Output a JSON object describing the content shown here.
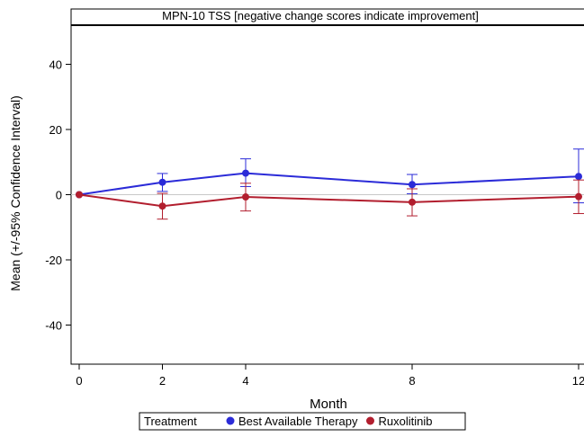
{
  "chart_data": {
    "type": "line",
    "title": "MPN-10 TSS [negative change scores indicate improvement]",
    "xlabel": "Month",
    "ylabel": "Mean (+/-95% Confidence Interval)",
    "x": [
      0,
      2,
      4,
      8,
      12
    ],
    "xticks": [
      "0",
      "2",
      "4",
      "8",
      "12"
    ],
    "yticks": [
      "-40",
      "-20",
      "0",
      "20",
      "40"
    ],
    "xlim": [
      0,
      12
    ],
    "ylim": [
      -52,
      52
    ],
    "reference_line_y": 0,
    "grid": false,
    "legend_title": "Treatment",
    "legend_position": "bottom",
    "series": [
      {
        "name": "Best Available Therapy",
        "color": "#2b2bd8",
        "marker": "circle",
        "values": [
          0,
          3.8,
          6.6,
          3.1,
          5.6
        ],
        "ci_lower": [
          0,
          1.0,
          2.5,
          0.3,
          -2.5
        ],
        "ci_upper": [
          0,
          6.5,
          11.0,
          6.2,
          14.0
        ]
      },
      {
        "name": "Ruxolitinib",
        "color": "#b21e2e",
        "marker": "circle",
        "values": [
          0,
          -3.5,
          -0.7,
          -2.3,
          -0.6
        ],
        "ci_lower": [
          0,
          -7.5,
          -5.0,
          -6.5,
          -5.8
        ],
        "ci_upper": [
          0,
          0.4,
          3.5,
          1.8,
          4.5
        ]
      }
    ]
  }
}
